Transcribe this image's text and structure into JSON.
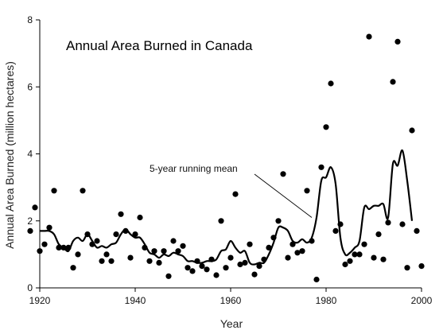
{
  "chart_data": {
    "type": "scatter",
    "title": "Annual Area Burned in Canada",
    "xlabel": "Year",
    "ylabel": "Annual Area Burned (million hectares)",
    "xlim": [
      1920,
      2000
    ],
    "ylim": [
      0,
      8
    ],
    "xticks": [
      1920,
      1940,
      1960,
      1980,
      2000
    ],
    "yticks": [
      0,
      2,
      4,
      6,
      8
    ],
    "grid": false,
    "annotation": {
      "text": "5-year running mean",
      "points_to": [
        1977,
        2.1
      ]
    },
    "series": [
      {
        "kind": "points",
        "x": [
          1918,
          1919,
          1920,
          1921,
          1922,
          1923,
          1924,
          1925,
          1926,
          1927,
          1928,
          1929,
          1930,
          1931,
          1932,
          1933,
          1934,
          1935,
          1936,
          1937,
          1938,
          1939,
          1940,
          1941,
          1942,
          1943,
          1944,
          1945,
          1946,
          1947,
          1948,
          1949,
          1950,
          1951,
          1952,
          1953,
          1954,
          1955,
          1956,
          1957,
          1958,
          1959,
          1960,
          1961,
          1962,
          1963,
          1964,
          1965,
          1966,
          1967,
          1968,
          1969,
          1970,
          1971,
          1972,
          1973,
          1974,
          1975,
          1976,
          1977,
          1978,
          1979,
          1980,
          1981,
          1982,
          1983,
          1984,
          1985,
          1986,
          1987,
          1988,
          1989,
          1990,
          1991,
          1992,
          1993,
          1994,
          1995,
          1996,
          1997,
          1998,
          1999,
          2000
        ],
        "y": [
          1.7,
          2.4,
          1.1,
          1.3,
          1.8,
          2.9,
          1.2,
          1.2,
          1.2,
          0.6,
          1.0,
          2.9,
          1.6,
          1.3,
          1.4,
          0.8,
          1.0,
          0.8,
          1.6,
          2.2,
          1.7,
          0.9,
          1.6,
          2.1,
          1.2,
          0.8,
          1.1,
          0.75,
          1.1,
          0.35,
          1.4,
          1.1,
          1.25,
          0.6,
          0.5,
          0.8,
          0.65,
          0.55,
          0.85,
          0.38,
          2.0,
          0.6,
          0.9,
          2.8,
          0.7,
          0.75,
          1.3,
          0.4,
          0.65,
          0.85,
          1.2,
          1.5,
          2.0,
          3.4,
          0.9,
          1.3,
          1.05,
          1.1,
          2.9,
          1.4,
          0.25,
          3.6,
          4.8,
          6.1,
          1.7,
          1.9,
          0.7,
          0.8,
          1.0,
          1.0,
          1.3,
          7.5,
          0.9,
          1.6,
          0.85,
          1.95,
          6.15,
          7.35,
          1.9,
          0.6,
          4.7,
          1.7,
          0.65
        ]
      },
      {
        "kind": "line",
        "name": "5-year running mean",
        "x": [
          1920,
          1921,
          1922,
          1923,
          1924,
          1925,
          1926,
          1927,
          1928,
          1929,
          1930,
          1931,
          1932,
          1933,
          1934,
          1935,
          1936,
          1937,
          1938,
          1939,
          1940,
          1941,
          1942,
          1943,
          1944,
          1945,
          1946,
          1947,
          1948,
          1949,
          1950,
          1951,
          1952,
          1953,
          1954,
          1955,
          1956,
          1957,
          1958,
          1959,
          1960,
          1961,
          1962,
          1963,
          1964,
          1965,
          1966,
          1967,
          1968,
          1969,
          1970,
          1971,
          1972,
          1973,
          1974,
          1975,
          1976,
          1977,
          1978,
          1979,
          1980,
          1981,
          1982,
          1983,
          1984,
          1985,
          1986,
          1987,
          1988,
          1989,
          1990,
          1991,
          1992,
          1993,
          1994,
          1995,
          1996,
          1997,
          1998
        ],
        "y": [
          1.7,
          1.7,
          1.7,
          1.6,
          1.3,
          1.2,
          1.1,
          1.4,
          1.5,
          1.4,
          1.6,
          1.4,
          1.2,
          1.25,
          1.2,
          1.3,
          1.35,
          1.6,
          1.75,
          1.6,
          1.5,
          1.5,
          1.3,
          1.05,
          1.0,
          0.9,
          1.0,
          0.95,
          1.05,
          1.0,
          0.95,
          0.8,
          0.8,
          0.75,
          0.75,
          0.8,
          0.8,
          0.85,
          1.1,
          1.15,
          1.4,
          1.2,
          1.05,
          1.1,
          0.75,
          0.7,
          0.75,
          0.75,
          1.0,
          1.35,
          1.8,
          1.8,
          1.7,
          1.4,
          1.35,
          1.45,
          1.35,
          1.5,
          2.1,
          3.2,
          3.3,
          3.6,
          3.1,
          1.5,
          1.0,
          1.05,
          1.2,
          1.4,
          2.4,
          2.35,
          2.45,
          2.45,
          2.5,
          2.1,
          3.7,
          3.65,
          4.1,
          3.2,
          2.0
        ]
      }
    ]
  }
}
